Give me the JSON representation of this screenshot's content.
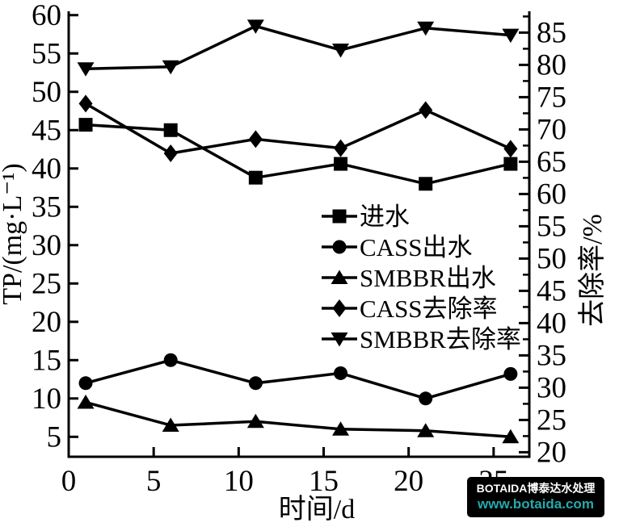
{
  "chart_data": {
    "type": "line",
    "title": "",
    "xlabel": "时间/d",
    "ylabel_left": "TP/(mg·L⁻¹)",
    "ylabel_right": "去除率/%",
    "x": [
      1,
      6,
      11,
      16,
      21,
      26
    ],
    "x_ticks": [
      0,
      5,
      10,
      15,
      20,
      25
    ],
    "left_ticks": [
      5,
      10,
      15,
      20,
      25,
      30,
      35,
      40,
      45,
      50,
      55,
      60
    ],
    "right_ticks": [
      20,
      25,
      30,
      35,
      40,
      45,
      50,
      55,
      60,
      65,
      70,
      75,
      80,
      85
    ],
    "x_range": [
      0,
      27.1
    ],
    "left_range": [
      2.4,
      60.5
    ],
    "right_range": [
      19.3,
      88.3
    ],
    "grid": false,
    "line_color": "#000000",
    "legend_position": "center-right",
    "series": [
      {
        "name": "进水",
        "axis": "left",
        "marker": "square",
        "values": [
          45.7,
          45.0,
          38.8,
          40.6,
          38.0,
          40.6
        ]
      },
      {
        "name": "CASS出水",
        "axis": "left",
        "marker": "circle",
        "values": [
          12.0,
          15.0,
          12.0,
          13.3,
          10.0,
          13.2
        ]
      },
      {
        "name": "SMBBR出水",
        "axis": "left",
        "marker": "triangle-up",
        "values": [
          9.5,
          6.5,
          7.0,
          6.0,
          5.8,
          5.0
        ]
      },
      {
        "name": "CASS去除率",
        "axis": "right",
        "marker": "diamond",
        "values": [
          74.0,
          66.3,
          68.5,
          67.1,
          73.0,
          67.0
        ]
      },
      {
        "name": "SMBBR去除率",
        "axis": "right",
        "marker": "triangle-down",
        "values": [
          79.4,
          79.7,
          86.0,
          82.3,
          85.7,
          84.6
        ]
      }
    ]
  },
  "watermark": {
    "brand": "BOTAIDA博泰达水处理",
    "url": "www.botaida.com",
    "bg_color": "#000000",
    "brand_color": "#ffffff",
    "url_color": "#25a9ad"
  }
}
